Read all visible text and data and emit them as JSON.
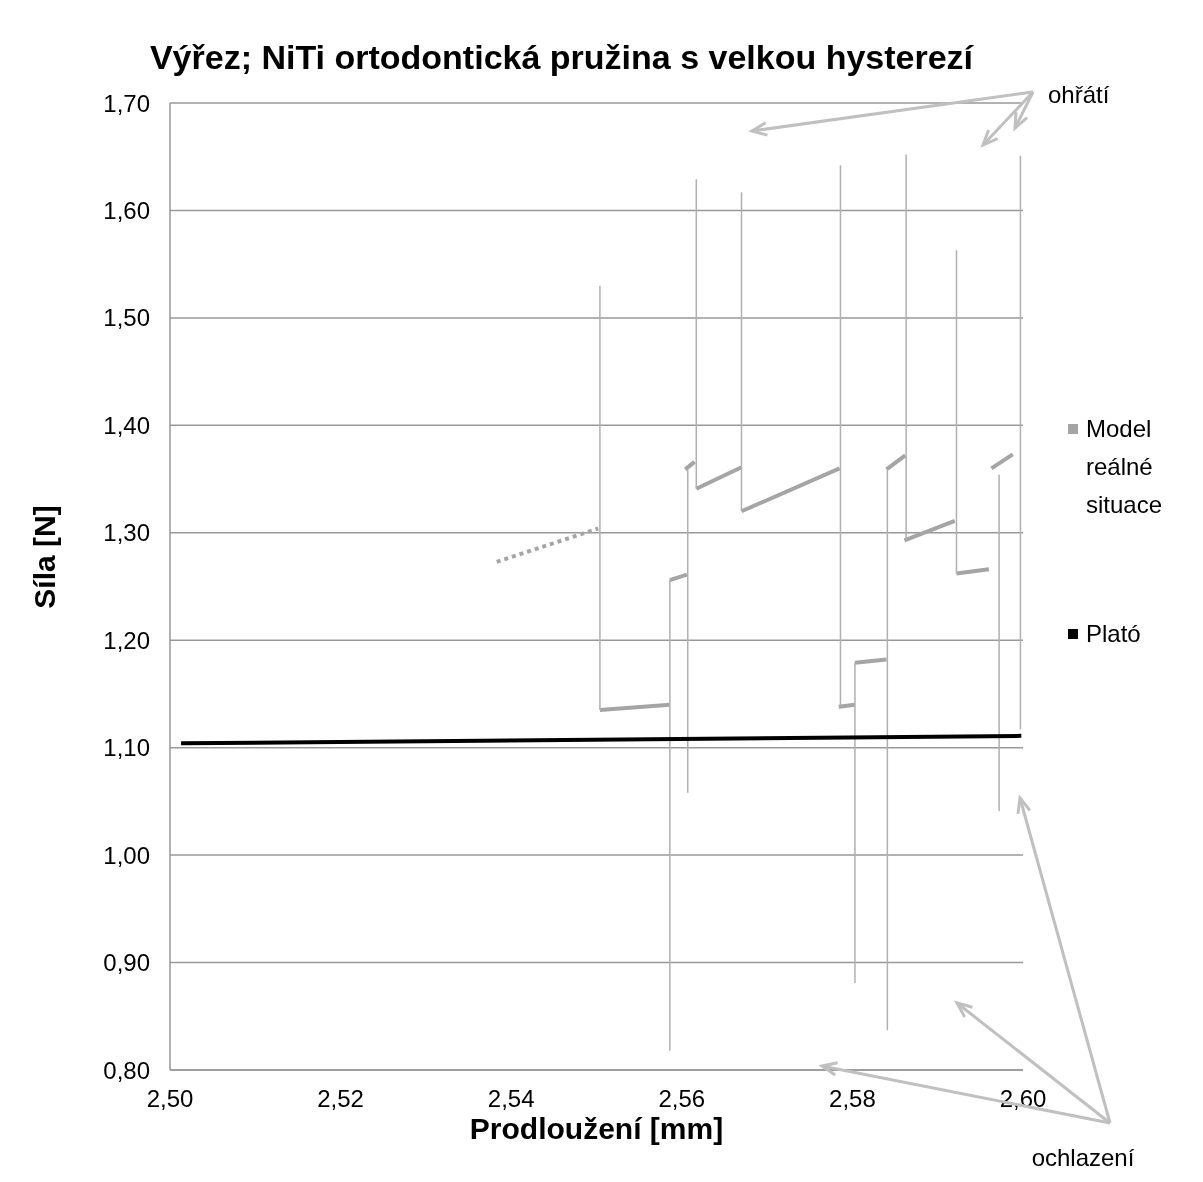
{
  "chart_data": {
    "type": "line",
    "title": "Výřez; NiTi ortodontická pružina s velkou hysterezí",
    "xlabel": "Prodloužení [mm]",
    "ylabel": "Síla [N]",
    "xlim": [
      2.5,
      2.6
    ],
    "ylim": [
      0.8,
      1.7
    ],
    "xticks": [
      {
        "value": 2.5,
        "label": "2,50"
      },
      {
        "value": 2.52,
        "label": "2,52"
      },
      {
        "value": 2.54,
        "label": "2,54"
      },
      {
        "value": 2.56,
        "label": "2,56"
      },
      {
        "value": 2.58,
        "label": "2,58"
      },
      {
        "value": 2.6,
        "label": "2,60"
      }
    ],
    "yticks": [
      {
        "value": 0.8,
        "label": "0,80"
      },
      {
        "value": 0.9,
        "label": "0,90"
      },
      {
        "value": 1.0,
        "label": "1,00"
      },
      {
        "value": 1.1,
        "label": "1,10"
      },
      {
        "value": 1.2,
        "label": "1,20"
      },
      {
        "value": 1.3,
        "label": "1,30"
      },
      {
        "value": 1.4,
        "label": "1,40"
      },
      {
        "value": 1.5,
        "label": "1,50"
      },
      {
        "value": 1.6,
        "label": "1,60"
      },
      {
        "value": 1.7,
        "label": "1,70"
      }
    ],
    "grid": "y",
    "legend": "right",
    "marker": "none",
    "series": [
      {
        "name": "Model reálné situace",
        "color": "#a5a5a5",
        "line_style": "solid",
        "x": [
          2.5504,
          2.5586,
          null,
          2.5586,
          2.5606,
          null,
          2.5604,
          2.5615,
          null,
          2.5617,
          2.567,
          null,
          2.567,
          2.5785,
          null,
          2.5784,
          2.5803,
          null,
          2.5803,
          2.584,
          null,
          2.584,
          2.5862,
          null,
          2.5861,
          2.592,
          null,
          2.5922,
          2.596,
          null,
          2.5963,
          2.5988
        ],
        "values": [
          1.135,
          1.14,
          null,
          1.256,
          1.261,
          null,
          1.359,
          1.366,
          null,
          1.341,
          1.361,
          null,
          1.32,
          1.36,
          null,
          1.138,
          1.14,
          null,
          1.179,
          1.182,
          null,
          1.359,
          1.372,
          null,
          1.293,
          1.311,
          null,
          1.262,
          1.266,
          null,
          1.36,
          1.373
        ]
      },
      {
        "color": "#b0b0b0",
        "type": "line",
        "line_style": "solid",
        "x": [
          2.5504,
          2.5504,
          null,
          2.5586,
          2.5586,
          null,
          2.5607,
          2.5607,
          null,
          2.5617,
          2.5617,
          null,
          2.567,
          2.567,
          null,
          2.5786,
          2.5786,
          null,
          2.5803,
          2.5803,
          null,
          2.5841,
          2.5841,
          null,
          2.5863,
          2.5863,
          null,
          2.5922,
          2.5922,
          null,
          2.5972,
          2.5972,
          null,
          2.5997,
          2.5997
        ],
        "values": [
          1.53,
          1.135,
          null,
          1.256,
          0.818,
          null,
          1.359,
          1.058,
          null,
          1.629,
          1.341,
          null,
          1.617,
          1.32,
          null,
          1.642,
          1.139,
          null,
          1.179,
          0.881,
          null,
          1.359,
          0.837,
          null,
          1.652,
          1.294,
          null,
          1.563,
          1.262,
          null,
          1.354,
          1.041,
          null,
          1.651,
          1.117
        ]
      },
      {
        "color": "#a5a5a5",
        "type": "line",
        "line_style": "dotted",
        "x": [
          2.5383,
          2.5502
        ],
        "values": [
          1.273,
          1.304
        ]
      },
      {
        "name": "Plató",
        "color": "#000000",
        "line_style": "solid",
        "x": [
          2.5013,
          2.5998
        ],
        "values": [
          1.104,
          1.111
        ]
      }
    ],
    "annotations": [
      "ohřátí",
      "ochlazení"
    ]
  }
}
